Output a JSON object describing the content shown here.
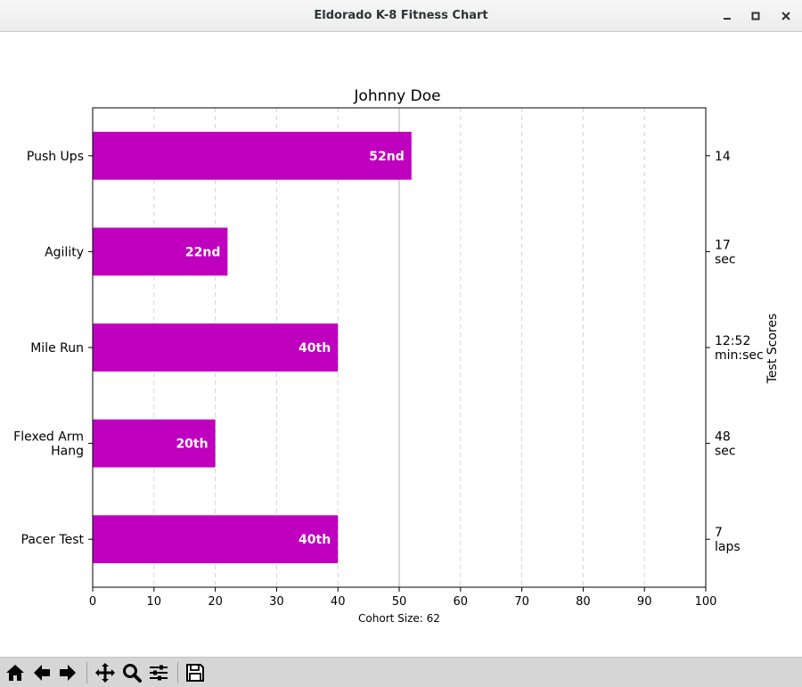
{
  "window": {
    "title": "Eldorado K-8 Fitness Chart"
  },
  "toolbar": {
    "buttons": [
      "home-icon",
      "back-icon",
      "forward-icon",
      "pan-icon",
      "zoom-icon",
      "configure-subplots-icon",
      "save-icon"
    ]
  },
  "chart_data": {
    "type": "bar",
    "orientation": "horizontal",
    "title": "Johnny Doe",
    "xlabel": "Cohort Size: 62",
    "right_label": "Test Scores",
    "xlim": [
      0,
      100
    ],
    "xticks": [
      0,
      10,
      20,
      30,
      40,
      50,
      60,
      70,
      80,
      90,
      100
    ],
    "grid": "vertical dashed",
    "median_line": 50,
    "bar_color": "#bf00bf",
    "categories": [
      "Pacer Test",
      "Flexed Arm\nHang",
      "Mile Run",
      "Agility",
      "Push Ups"
    ],
    "values": [
      40,
      20,
      40,
      22,
      52
    ],
    "rank_labels": [
      "40th",
      "20th",
      "40th",
      "22nd",
      "52nd"
    ],
    "scores": [
      "7\nlaps",
      "48\nsec",
      "12:52\nmin:sec",
      "17\nsec",
      "14"
    ]
  }
}
